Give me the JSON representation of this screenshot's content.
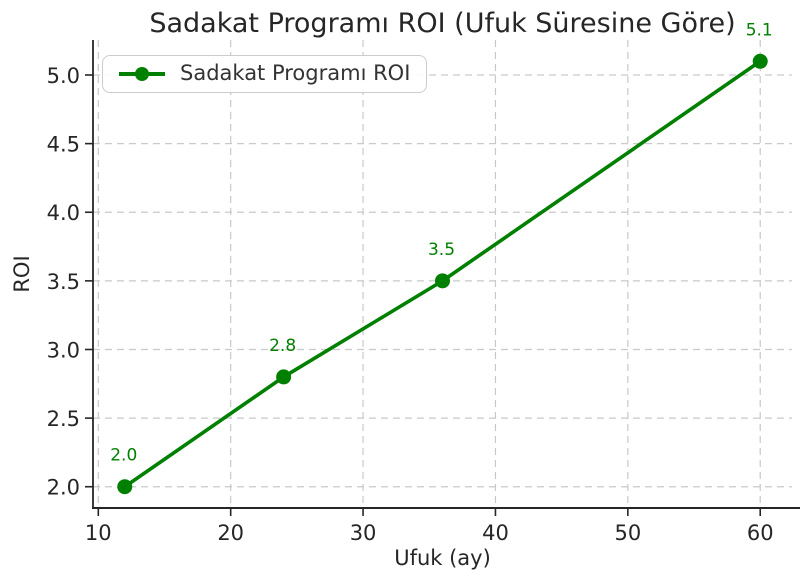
{
  "chart_data": {
    "type": "line",
    "title": "Sadakat Programı ROI (Ufuk Süresine Göre)",
    "xlabel": "Ufuk (ay)",
    "ylabel": "ROI",
    "legend": {
      "label": "Sadakat Programı ROI",
      "position": "upper left"
    },
    "series": [
      {
        "name": "Sadakat Programı ROI",
        "x": [
          12,
          24,
          36,
          60
        ],
        "values": [
          2.0,
          2.8,
          3.5,
          5.1
        ],
        "point_labels": [
          "2.0",
          "2.8",
          "3.5",
          "5.1"
        ]
      }
    ],
    "xticks": [
      10,
      20,
      30,
      40,
      50,
      60
    ],
    "xtick_labels": [
      "10",
      "20",
      "30",
      "40",
      "50",
      "60"
    ],
    "yticks": [
      2.0,
      2.5,
      3.0,
      3.5,
      4.0,
      4.5,
      5.0
    ],
    "ytick_labels": [
      "2.0",
      "2.5",
      "3.0",
      "3.5",
      "4.0",
      "4.5",
      "5.0"
    ],
    "xlim": [
      9.6,
      62.4
    ],
    "ylim": [
      1.845,
      5.255
    ],
    "grid": true,
    "grid_style": "dashed",
    "colors": {
      "series": "#008000",
      "point_label": "#008000",
      "grid": "#c9c9c9",
      "axis": "#262626",
      "text": "#262626",
      "background": "#ffffff"
    }
  }
}
